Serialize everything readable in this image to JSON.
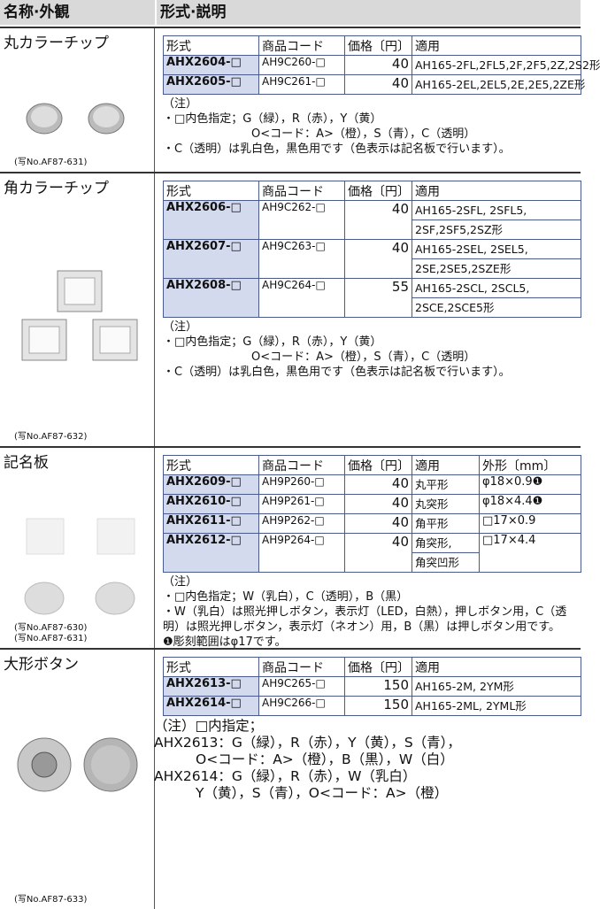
{
  "header": {
    "name": "名称·外観",
    "desc": "形式·説明"
  },
  "sections": [
    {
      "name": "丸カラーチップ",
      "captions": [
        "(写No.AF87-631)"
      ],
      "columns": [
        "形式",
        "商品コード",
        "価格〔円〕",
        "適用"
      ],
      "rows": [
        [
          "AHX2604-□",
          "AH9C260-□",
          40,
          [
            "AH165-2FL,2FL5,2F,2F5,2Z,2S2形"
          ]
        ],
        [
          "AHX2605-□",
          "AH9C261-□",
          40,
          [
            "AH165-2EL,2EL5,2E,2E5,2ZE形"
          ]
        ]
      ],
      "notes": [
        "（注）",
        "・□内色指定；G（緑），R（赤），Y（黄）",
        "O<コード：A>（橙），S（青），C（透明）",
        "・C（透明）は乳白色，黒色用です（色表示は記名板で行います）。"
      ]
    },
    {
      "name": "角カラーチップ",
      "captions": [
        "(写No.AF87-632)"
      ],
      "columns": [
        "形式",
        "商品コード",
        "価格〔円〕",
        "適用"
      ],
      "rows": [
        [
          "AHX2606-□",
          "AH9C262-□",
          40,
          [
            "AH165-2SFL, 2SFL5,",
            "2SF,2SF5,2SZ形"
          ]
        ],
        [
          "AHX2607-□",
          "AH9C263-□",
          40,
          [
            "AH165-2SEL, 2SEL5,",
            "2SE,2SE5,2SZE形"
          ]
        ],
        [
          "AHX2608-□",
          "AH9C264-□",
          55,
          [
            "AH165-2SCL, 2SCL5,",
            "2SCE,2SCE5形"
          ]
        ]
      ],
      "notes": [
        "（注）",
        "・□内色指定；G（緑），R（赤），Y（黄）",
        "O<コード：A>（橙），S（青），C（透明）",
        "・C（透明）は乳白色，黒色用です（色表示は記名板で行います）。"
      ]
    },
    {
      "name": "記名板",
      "captions": [
        "(写No.AF87-630)",
        "(写No.AF87-631)"
      ],
      "columns": [
        "形式",
        "商品コード",
        "価格〔円〕",
        "適用",
        "外形〔mm〕"
      ],
      "rows": [
        [
          "AHX2609-□",
          "AH9P260-□",
          40,
          [
            "丸平形"
          ],
          "φ18×0.9❶"
        ],
        [
          "AHX2610-□",
          "AH9P261-□",
          40,
          [
            "丸突形"
          ],
          "φ18×4.4❶"
        ],
        [
          "AHX2611-□",
          "AH9P262-□",
          40,
          [
            "角平形"
          ],
          "□17×0.9"
        ],
        [
          "AHX2612-□",
          "AH9P264-□",
          40,
          [
            "角突形,",
            "角突凹形"
          ],
          "□17×4.4"
        ]
      ],
      "notes": [
        "（注）",
        "・□内色指定；W（乳白），C（透明），B（黒）",
        "・W（乳白）は照光押しボタン，表示灯（LED，白熱），押しボタン用，C（透明）は照光押しボタン，表示灯（ネオン）用，B（黒）は押しボタン用です。",
        "❶彫刻範囲はφ17です。"
      ]
    },
    {
      "name": "大形ボタン",
      "captions": [
        "(写No.AF87-633)"
      ],
      "columns": [
        "形式",
        "商品コード",
        "価格〔円〕",
        "適用"
      ],
      "rows": [
        [
          "AHX2613-□",
          "AH9C265-□",
          150,
          [
            "AH165-2M, 2YM形"
          ]
        ],
        [
          "AHX2614-□",
          "AH9C266-□",
          150,
          [
            "AH165-2ML, 2YML形"
          ]
        ]
      ],
      "notes": [
        "（注）□内指定；",
        "AHX2613：G（緑），R（赤），Y（黄），S（青），",
        "O<コード：A>（橙），B（黒），W（白）",
        "AHX2614：G（緑），R（赤），W（乳白）",
        "Y（黄），S（青），O<コード：A>（橙）"
      ]
    }
  ]
}
